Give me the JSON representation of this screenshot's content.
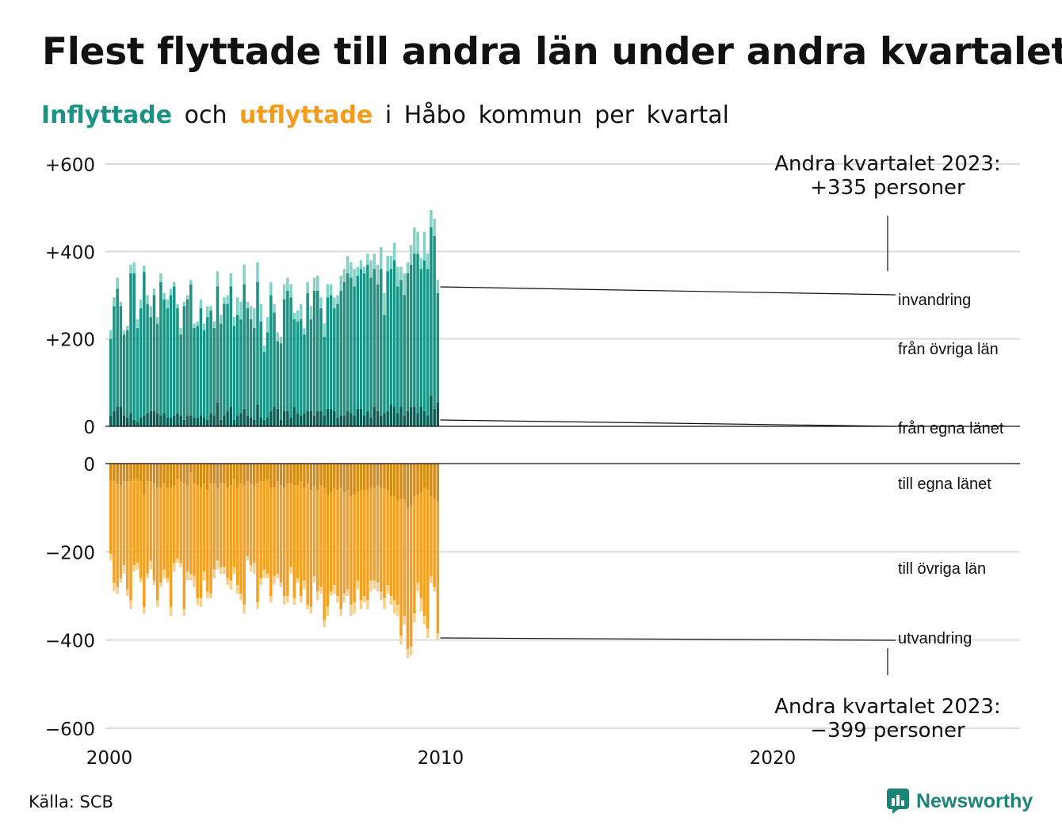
{
  "title": "Flest flyttade till andra län under andra kvartalet",
  "subtitle": {
    "in_word": "Inflyttade",
    "and_word": "och",
    "out_word": "utflyttade",
    "rest": "i Håbo kommun per kvartal"
  },
  "source": "Källa: SCB",
  "brand": {
    "name": "Newsworthy",
    "icon": "newsworthy-logo-icon"
  },
  "colors": {
    "in_own": "#0a5d54",
    "in_other": "#1a9384",
    "in_immig": "#86d1c6",
    "out_own": "#d68b12",
    "out_other": "#f5a020",
    "out_emig": "#f8d08e",
    "grid": "#dcdcdc",
    "axis": "#111111"
  },
  "chart_data": {
    "type": "bar",
    "stacked": true,
    "x_start": "2000 Q1",
    "xticks": [
      "2000",
      "2010",
      "2020"
    ],
    "top": {
      "yticks": [
        "+600",
        "+400",
        "+200",
        "0"
      ],
      "ytick_values": [
        600,
        400,
        200,
        0
      ],
      "ylim": [
        0,
        600
      ],
      "annotation": [
        "Andra kvartalet 2023:",
        "+335 personer"
      ],
      "series": [
        {
          "name": "från egna länet",
          "values": [
            25,
            35,
            45,
            45,
            25,
            20,
            30,
            15,
            10,
            20,
            25,
            30,
            35,
            35,
            30,
            25,
            30,
            20,
            20,
            25,
            30,
            25,
            15,
            25,
            25,
            20,
            20,
            25,
            20,
            15,
            30,
            25,
            55,
            15,
            25,
            35,
            45,
            15,
            25,
            30,
            40,
            25,
            20,
            15,
            50,
            20,
            15,
            20,
            35,
            45,
            40,
            15,
            35,
            35,
            20,
            45,
            30,
            25,
            30,
            35,
            35,
            25,
            35,
            35,
            25,
            40,
            40,
            35,
            20,
            25,
            25,
            35,
            30,
            25,
            40,
            40,
            25,
            35,
            20,
            45,
            35,
            25,
            30,
            35,
            50,
            45,
            30,
            45,
            25,
            35,
            45,
            45,
            30,
            45,
            35,
            25,
            70,
            40,
            55
          ]
        },
        {
          "name": "från övriga län",
          "values": [
            175,
            240,
            270,
            230,
            185,
            200,
            320,
            335,
            215,
            250,
            328,
            250,
            215,
            265,
            205,
            305,
            260,
            250,
            280,
            295,
            240,
            185,
            260,
            265,
            300,
            205,
            210,
            245,
            200,
            235,
            235,
            200,
            265,
            220,
            255,
            245,
            275,
            215,
            230,
            215,
            285,
            245,
            225,
            210,
            280,
            220,
            155,
            195,
            265,
            215,
            155,
            175,
            255,
            275,
            275,
            200,
            210,
            220,
            180,
            270,
            210,
            285,
            275,
            235,
            180,
            255,
            260,
            235,
            260,
            285,
            305,
            315,
            310,
            295,
            305,
            320,
            325,
            335,
            320,
            315,
            290,
            335,
            225,
            320,
            310,
            335,
            290,
            290,
            275,
            315,
            325,
            350,
            365,
            315,
            345,
            335,
            385,
            395,
            250
          ]
        },
        {
          "name": "invandring",
          "values": [
            20,
            20,
            25,
            10,
            10,
            10,
            20,
            25,
            20,
            20,
            15,
            20,
            25,
            15,
            15,
            20,
            15,
            20,
            15,
            10,
            10,
            15,
            10,
            10,
            10,
            10,
            10,
            20,
            15,
            25,
            10,
            15,
            35,
            20,
            15,
            20,
            30,
            20,
            40,
            40,
            45,
            15,
            30,
            45,
            45,
            40,
            15,
            35,
            30,
            20,
            20,
            15,
            35,
            30,
            30,
            15,
            25,
            35,
            15,
            25,
            30,
            30,
            35,
            25,
            30,
            30,
            25,
            25,
            20,
            35,
            30,
            40,
            35,
            40,
            20,
            20,
            15,
            25,
            40,
            35,
            45,
            50,
            50,
            35,
            30,
            40,
            45,
            30,
            50,
            25,
            45,
            60,
            50,
            25,
            65,
            35,
            40,
            40,
            30
          ]
        }
      ]
    },
    "bottom": {
      "yticks": [
        "0",
        "−200",
        "−400",
        "−600"
      ],
      "ytick_values": [
        0,
        -200,
        -400,
        -600
      ],
      "ylim": [
        -600,
        0
      ],
      "annotation": [
        "Andra kvartalet 2023:",
        "−399 personer"
      ],
      "series": [
        {
          "name": "till egna länet",
          "values": [
            -40,
            -40,
            -45,
            -50,
            -40,
            -40,
            -40,
            -35,
            -35,
            -40,
            -70,
            -40,
            -40,
            -45,
            -55,
            -55,
            -45,
            -55,
            -55,
            -50,
            -35,
            -40,
            -45,
            -50,
            -20,
            -45,
            -50,
            -55,
            -45,
            -60,
            -45,
            -45,
            -55,
            -45,
            -45,
            -55,
            -50,
            -35,
            -55,
            -45,
            -50,
            -40,
            -45,
            -50,
            -45,
            -40,
            -40,
            -35,
            -55,
            -55,
            -40,
            -50,
            -55,
            -45,
            -45,
            -50,
            -50,
            -40,
            -55,
            -45,
            -60,
            -50,
            -60,
            -50,
            -55,
            -70,
            -65,
            -55,
            -60,
            -55,
            -65,
            -60,
            -75,
            -70,
            -65,
            -60,
            -60,
            -60,
            -55,
            -55,
            -50,
            -55,
            -55,
            -60,
            -75,
            -75,
            -85,
            -80,
            -80,
            -100,
            -95,
            -75,
            -70,
            -65,
            -55,
            -60,
            -75,
            -80,
            -85
          ]
        },
        {
          "name": "till övriga län",
          "values": [
            -165,
            -230,
            -235,
            -210,
            -190,
            -245,
            -270,
            -195,
            -190,
            -220,
            -255,
            -210,
            -180,
            -220,
            -255,
            -215,
            -195,
            -205,
            -270,
            -175,
            -180,
            -185,
            -285,
            -195,
            -230,
            -210,
            -255,
            -250,
            -200,
            -230,
            -250,
            -195,
            -165,
            -190,
            -190,
            -205,
            -215,
            -200,
            -220,
            -250,
            -270,
            -170,
            -185,
            -175,
            -270,
            -220,
            -200,
            -215,
            -245,
            -200,
            -210,
            -220,
            -245,
            -255,
            -190,
            -255,
            -210,
            -260,
            -210,
            -275,
            -265,
            -205,
            -230,
            -230,
            -300,
            -255,
            -225,
            -220,
            -240,
            -275,
            -230,
            -225,
            -245,
            -245,
            -200,
            -250,
            -240,
            -250,
            -210,
            -210,
            -220,
            -235,
            -250,
            -215,
            -225,
            -235,
            -235,
            -310,
            -265,
            -320,
            -320,
            -265,
            -200,
            -240,
            -290,
            -315,
            -180,
            -200,
            -300
          ]
        },
        {
          "name": "utvandring",
          "values": [
            -15,
            -20,
            -15,
            -10,
            -20,
            -15,
            -20,
            -15,
            -15,
            -10,
            -15,
            -10,
            -20,
            -10,
            -15,
            -10,
            -20,
            -10,
            -20,
            -20,
            -10,
            -10,
            -15,
            -20,
            -15,
            -25,
            -15,
            -20,
            -20,
            -15,
            -10,
            -20,
            -20,
            -15,
            -15,
            -15,
            -20,
            -15,
            -20,
            -15,
            -20,
            -10,
            -15,
            -25,
            -15,
            -15,
            -20,
            -10,
            -15,
            -20,
            -10,
            -10,
            -20,
            -15,
            -15,
            -15,
            -10,
            -15,
            -20,
            -10,
            -15,
            -15,
            -20,
            -15,
            -15,
            -20,
            -10,
            -20,
            -15,
            -15,
            -20,
            -15,
            -25,
            -25,
            -20,
            -20,
            -15,
            -20,
            -25,
            -20,
            -20,
            -20,
            -25,
            -20,
            -20,
            -30,
            -25,
            -20,
            -20,
            -20,
            -20,
            -20,
            -20,
            -30,
            -20,
            -20,
            -15,
            -10,
            -14
          ]
        }
      ]
    },
    "legend": "direct labels at right"
  }
}
